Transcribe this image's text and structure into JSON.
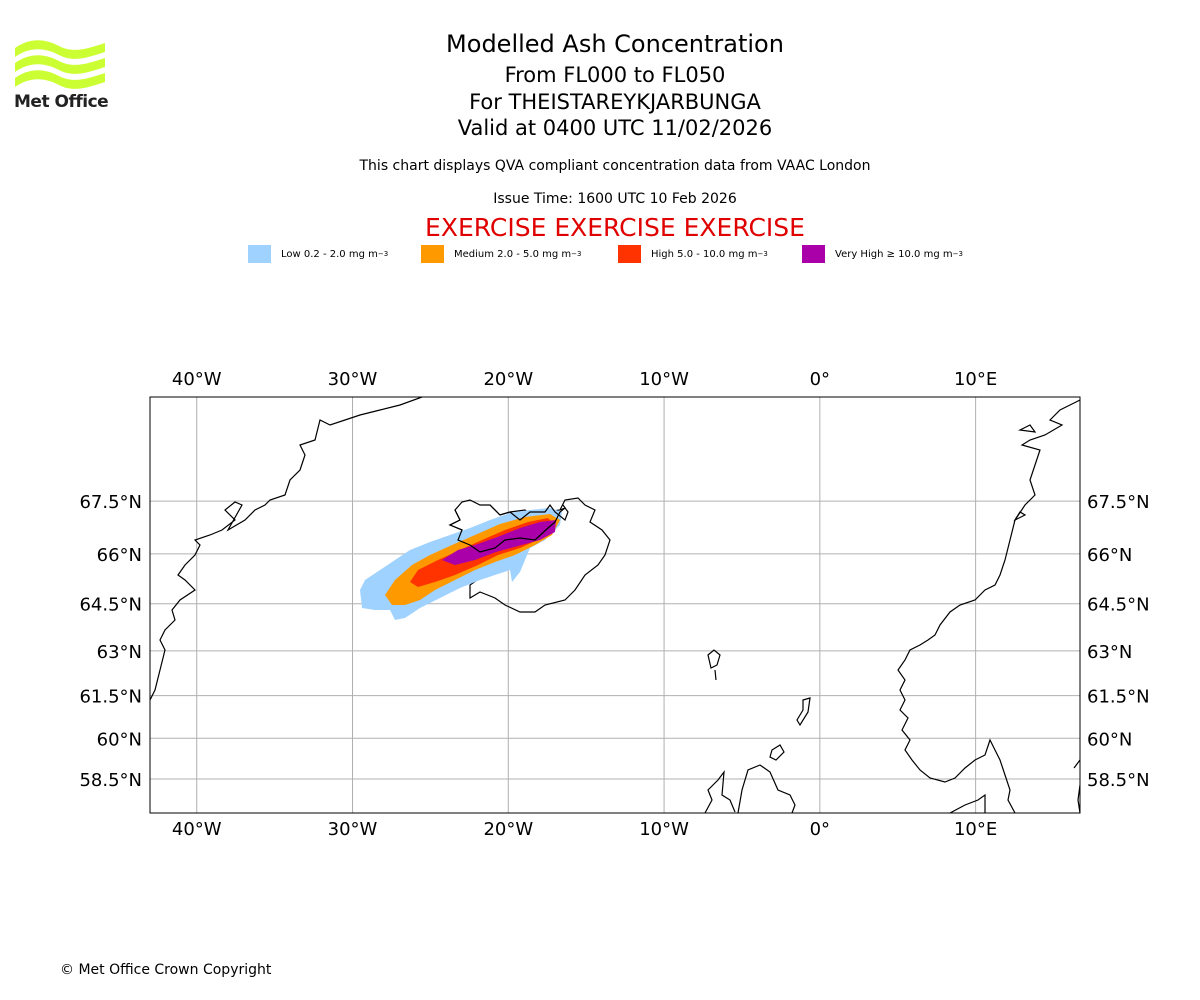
{
  "header": {
    "title": "Modelled Ash Concentration",
    "levels": "From FL000 to FL050",
    "volcano": "For THEISTAREYKJARBUNGA",
    "valid": "Valid at 0400 UTC 11/02/2026",
    "subtitle": "This chart displays QVA compliant concentration data from VAAC London",
    "issue_time": "Issue Time: 1600 UTC 10 Feb 2026",
    "exercise": "EXERCISE EXERCISE EXERCISE"
  },
  "logo": {
    "text": "Met Office",
    "color": "#ccff33"
  },
  "legend": [
    {
      "label": "Low 0.2 - 2.0 mg m",
      "sup": "−3",
      "color": "#a0d2ff"
    },
    {
      "label": "Medium 2.0 - 5.0 mg m",
      "sup": "−3",
      "color": "#ff9900"
    },
    {
      "label": "High 5.0 - 10.0 mg m",
      "sup": "−3",
      "color": "#ff3300"
    },
    {
      "label": "Very High  ≥  10.0 mg m",
      "sup": "−3",
      "color": "#aa00aa"
    }
  ],
  "map": {
    "lon_range": [
      -43,
      16.7
    ],
    "lat_range": [
      57.2,
      70.2
    ],
    "lon_ticks": [
      {
        "value": -40,
        "label": "40°W"
      },
      {
        "value": -30,
        "label": "30°W"
      },
      {
        "value": -20,
        "label": "20°W"
      },
      {
        "value": -10,
        "label": "10°W"
      },
      {
        "value": 0,
        "label": "0°"
      },
      {
        "value": 10,
        "label": "10°E"
      }
    ],
    "lat_ticks": [
      {
        "value": 67.5,
        "label": "67.5°N"
      },
      {
        "value": 66,
        "label": "66°N"
      },
      {
        "value": 64.5,
        "label": "64.5°N"
      },
      {
        "value": 63,
        "label": "63°N"
      },
      {
        "value": 61.5,
        "label": "61.5°N"
      },
      {
        "value": 60,
        "label": "60°N"
      },
      {
        "value": 58.5,
        "label": "58.5°N"
      }
    ]
  },
  "footer": {
    "copyright": "© Met Office Crown Copyright"
  }
}
